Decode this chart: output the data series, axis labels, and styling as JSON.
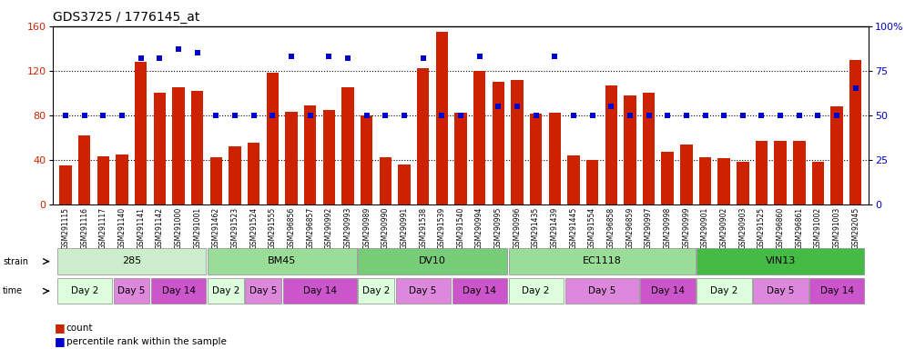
{
  "title": "GDS3725 / 1776145_at",
  "samples": [
    "GSM291115",
    "GSM291116",
    "GSM291117",
    "GSM291140",
    "GSM291141",
    "GSM291142",
    "GSM291000",
    "GSM291001",
    "GSM291462",
    "GSM291523",
    "GSM291524",
    "GSM291555",
    "GSM296856",
    "GSM296857",
    "GSM290992",
    "GSM290993",
    "GSM290989",
    "GSM290990",
    "GSM290991",
    "GSM291538",
    "GSM291539",
    "GSM291540",
    "GSM290994",
    "GSM290995",
    "GSM290996",
    "GSM291435",
    "GSM291439",
    "GSM291445",
    "GSM291554",
    "GSM296858",
    "GSM296859",
    "GSM290997",
    "GSM290998",
    "GSM290999",
    "GSM290901",
    "GSM290902",
    "GSM290903",
    "GSM291525",
    "GSM296860",
    "GSM296861",
    "GSM291002",
    "GSM291003",
    "GSM292045"
  ],
  "counts": [
    35,
    62,
    43,
    45,
    128,
    100,
    105,
    102,
    42,
    52,
    55,
    118,
    83,
    89,
    85,
    105,
    80,
    42,
    36,
    122,
    155,
    82,
    120,
    110,
    112,
    81,
    82,
    44,
    40,
    107,
    98,
    100,
    47,
    54,
    42,
    41,
    38,
    57,
    57,
    57,
    38,
    88,
    130
  ],
  "percentiles": [
    50,
    50,
    50,
    50,
    82,
    82,
    87,
    85,
    50,
    50,
    50,
    50,
    83,
    50,
    83,
    82,
    50,
    50,
    50,
    82,
    50,
    50,
    83,
    55,
    55,
    50,
    83,
    50,
    50,
    55,
    50,
    50,
    50,
    50,
    50,
    50,
    50,
    50,
    50,
    50,
    50,
    50,
    65
  ],
  "strains": [
    {
      "label": "285",
      "start": 0,
      "end": 8,
      "color": "#cceecc"
    },
    {
      "label": "BM45",
      "start": 8,
      "end": 16,
      "color": "#99dd99"
    },
    {
      "label": "DV10",
      "start": 16,
      "end": 24,
      "color": "#77cc77"
    },
    {
      "label": "EC1118",
      "start": 24,
      "end": 34,
      "color": "#99dd99"
    },
    {
      "label": "VIN13",
      "start": 34,
      "end": 43,
      "color": "#44bb44"
    }
  ],
  "time_groups": [
    {
      "label": "Day 2",
      "start": 0,
      "end": 3
    },
    {
      "label": "Day 5",
      "start": 3,
      "end": 5
    },
    {
      "label": "Day 14",
      "start": 5,
      "end": 8
    },
    {
      "label": "Day 2",
      "start": 8,
      "end": 10
    },
    {
      "label": "Day 5",
      "start": 10,
      "end": 12
    },
    {
      "label": "Day 14",
      "start": 12,
      "end": 16
    },
    {
      "label": "Day 2",
      "start": 16,
      "end": 18
    },
    {
      "label": "Day 5",
      "start": 18,
      "end": 21
    },
    {
      "label": "Day 14",
      "start": 21,
      "end": 24
    },
    {
      "label": "Day 2",
      "start": 24,
      "end": 27
    },
    {
      "label": "Day 5",
      "start": 27,
      "end": 31
    },
    {
      "label": "Day 14",
      "start": 31,
      "end": 34
    },
    {
      "label": "Day 2",
      "start": 34,
      "end": 37
    },
    {
      "label": "Day 5",
      "start": 37,
      "end": 40
    },
    {
      "label": "Day 14",
      "start": 40,
      "end": 43
    }
  ],
  "time_colors": {
    "Day 2": "#ddffdd",
    "Day 5": "#dd88dd",
    "Day 14": "#cc55cc"
  },
  "ylim_left": [
    0,
    160
  ],
  "ylim_right": [
    0,
    100
  ],
  "yticks_left": [
    0,
    40,
    80,
    120,
    160
  ],
  "yticks_right": [
    0,
    25,
    50,
    75,
    100
  ],
  "bar_color": "#cc2200",
  "dot_color": "#0000cc",
  "title_fontsize": 10,
  "sample_fontsize": 5.5,
  "row_fontsize": 8.0,
  "legend_fontsize": 7.5
}
